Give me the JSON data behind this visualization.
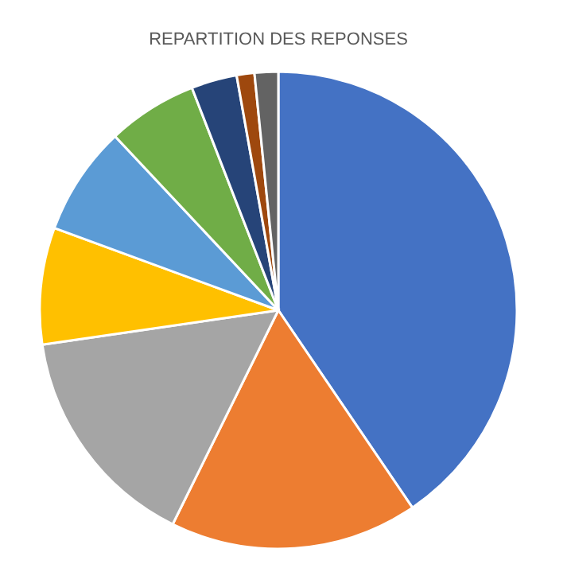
{
  "chart_data": {
    "type": "pie",
    "title": "REPARTITION DES REPONSES",
    "categories": [
      null,
      null,
      null,
      null,
      null,
      null,
      null,
      null,
      null
    ],
    "values": [
      40.5,
      16.8,
      15.4,
      7.9,
      7.4,
      6.1,
      3.1,
      1.2,
      1.6
    ],
    "colors": [
      "#4472c4",
      "#ed7d31",
      "#a5a5a5",
      "#ffc000",
      "#5b9bd5",
      "#70ad47",
      "#264478",
      "#9e480e",
      "#636363"
    ],
    "legend": false
  }
}
